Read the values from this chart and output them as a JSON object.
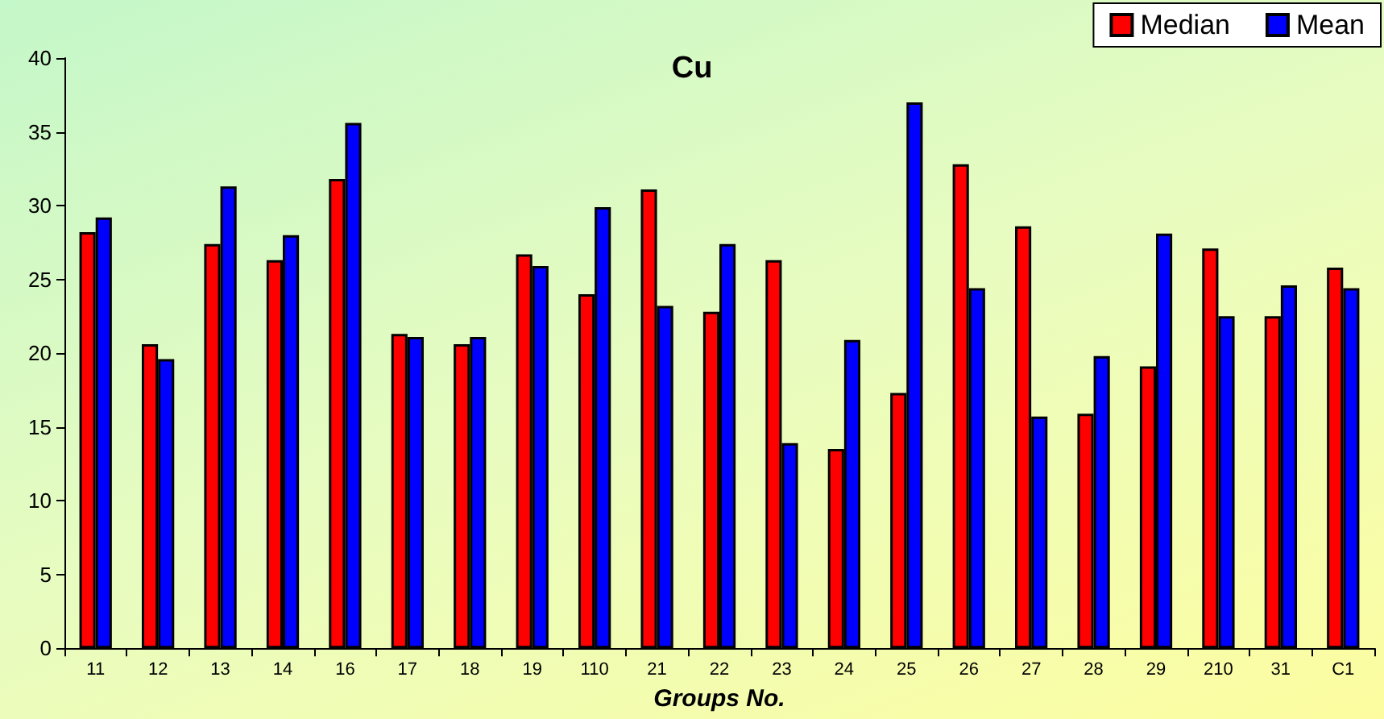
{
  "chart_data": {
    "type": "bar",
    "title": "Cu",
    "xlabel": "Groups No.",
    "categories": [
      "11",
      "12",
      "13",
      "14",
      "16",
      "17",
      "18",
      "19",
      "110",
      "21",
      "22",
      "23",
      "24",
      "25",
      "26",
      "27",
      "28",
      "29",
      "210",
      "31",
      "C1"
    ],
    "series": [
      {
        "name": "Median",
        "color": "#ff0000",
        "values": [
          28.2,
          20.6,
          27.4,
          26.3,
          31.8,
          21.3,
          20.6,
          26.7,
          24.0,
          31.1,
          22.8,
          26.3,
          13.5,
          17.3,
          32.8,
          28.6,
          15.9,
          19.1,
          27.1,
          22.5,
          25.8
        ]
      },
      {
        "name": "Mean",
        "color": "#0000ff",
        "values": [
          29.2,
          19.6,
          31.3,
          28.0,
          35.6,
          21.1,
          21.1,
          25.9,
          29.9,
          23.2,
          27.4,
          13.9,
          20.9,
          37.0,
          24.4,
          15.7,
          19.8,
          28.1,
          22.5,
          24.6,
          24.4
        ]
      }
    ],
    "ylim": [
      0,
      40
    ],
    "yticks": [
      0,
      5,
      10,
      15,
      20,
      25,
      30,
      35,
      40
    ],
    "grid": false,
    "legend": "top right"
  }
}
